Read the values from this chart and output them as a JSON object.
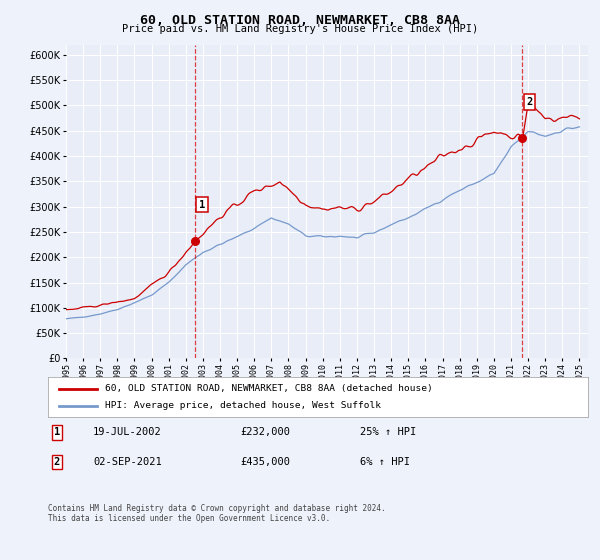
{
  "title": "60, OLD STATION ROAD, NEWMARKET, CB8 8AA",
  "subtitle": "Price paid vs. HM Land Registry's House Price Index (HPI)",
  "bg_color": "#eef2fa",
  "plot_bg_color": "#e8edf8",
  "grid_color": "#ffffff",
  "red_color": "#cc0000",
  "blue_color": "#7799cc",
  "ylim": [
    0,
    620000
  ],
  "yticks": [
    0,
    50000,
    100000,
    150000,
    200000,
    250000,
    300000,
    350000,
    400000,
    450000,
    500000,
    550000,
    600000
  ],
  "legend_label_red": "60, OLD STATION ROAD, NEWMARKET, CB8 8AA (detached house)",
  "legend_label_blue": "HPI: Average price, detached house, West Suffolk",
  "sale1_date": "19-JUL-2002",
  "sale1_price": "£232,000",
  "sale1_hpi": "25% ↑ HPI",
  "sale1_x": 2002.54,
  "sale1_y": 232000,
  "sale2_date": "02-SEP-2021",
  "sale2_price": "£435,000",
  "sale2_hpi": "6% ↑ HPI",
  "sale2_x": 2021.67,
  "sale2_y": 435000,
  "footnote1": "Contains HM Land Registry data © Crown copyright and database right 2024.",
  "footnote2": "This data is licensed under the Open Government Licence v3.0.",
  "xmin": 1995.0,
  "xmax": 2025.5
}
